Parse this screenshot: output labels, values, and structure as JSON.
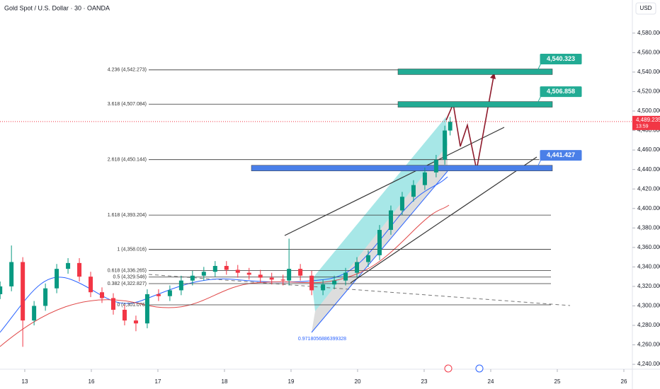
{
  "chart_data": {
    "type": "candlestick",
    "title": "Gold Spot / U.S. Dollar · 30 · OANDA",
    "currency": "USD",
    "up_color": "#089981",
    "down_color": "#f23645",
    "xlim": [
      -0.372,
      9.128
    ],
    "ylim": [
      4235,
      4614
    ],
    "xticks": [
      {
        "value": 0,
        "label": "13"
      },
      {
        "value": 1,
        "label": "16"
      },
      {
        "value": 2,
        "label": "17"
      },
      {
        "value": 3,
        "label": "18"
      },
      {
        "value": 4,
        "label": "19"
      },
      {
        "value": 5,
        "label": "20"
      },
      {
        "value": 6,
        "label": "23"
      },
      {
        "value": 7,
        "label": "24"
      },
      {
        "value": 8,
        "label": "25"
      },
      {
        "value": 9,
        "label": "26"
      }
    ],
    "yticks": [
      {
        "value": 4240,
        "label": "4,240.000"
      },
      {
        "value": 4260,
        "label": "4,260.000"
      },
      {
        "value": 4280,
        "label": "4,280.000"
      },
      {
        "value": 4300,
        "label": "4,300.000"
      },
      {
        "value": 4320,
        "label": "4,320.000"
      },
      {
        "value": 4340,
        "label": "4,340.000"
      },
      {
        "value": 4360,
        "label": "4,360.000"
      },
      {
        "value": 4380,
        "label": "4,380.000"
      },
      {
        "value": 4400,
        "label": "4,400.000"
      },
      {
        "value": 4420,
        "label": "4,420.000"
      },
      {
        "value": 4440,
        "label": "4,440.000"
      },
      {
        "value": 4460,
        "label": "4,460.000"
      },
      {
        "value": 4480,
        "label": "4,480.000"
      },
      {
        "value": 4500,
        "label": "4,500.000"
      },
      {
        "value": 4520,
        "label": "4,520.000"
      },
      {
        "value": 4540,
        "label": "4,540.000"
      },
      {
        "value": 4560,
        "label": "4,560.000"
      },
      {
        "value": 4580,
        "label": "4,580.000"
      }
    ],
    "x": [
      -0.37,
      -0.2,
      -0.03,
      0.14,
      0.31,
      0.48,
      0.65,
      0.82,
      0.99,
      1.16,
      1.33,
      1.5,
      1.67,
      1.84,
      2.01,
      2.18,
      2.35,
      2.52,
      2.69,
      2.86,
      3.03,
      3.2,
      3.37,
      3.54,
      3.71,
      3.88,
      3.97,
      4.14,
      4.31,
      4.48,
      4.65,
      4.82,
      4.99,
      5.16,
      5.33,
      5.5,
      5.67,
      5.84,
      6.01,
      6.18,
      6.31,
      6.39
    ],
    "open": [
      4312,
      4320,
      4345,
      4285,
      4300,
      4318,
      4338,
      4344,
      4330,
      4314,
      4308,
      4296,
      4285,
      4282,
      4312,
      4310,
      4316,
      4326,
      4331,
      4335,
      4341,
      4337,
      4334,
      4332,
      4329,
      4327,
      4326,
      4338,
      4331,
      4316,
      4322,
      4326,
      4334,
      4345,
      4352,
      4378,
      4398,
      4412,
      4424,
      4437,
      4450,
      4480
    ],
    "high": [
      4325,
      4362,
      4350,
      4305,
      4323,
      4343,
      4349,
      4349,
      4335,
      4319,
      4313,
      4301,
      4290,
      4317,
      4317,
      4321,
      4331,
      4336,
      4340,
      4346,
      4346,
      4342,
      4339,
      4337,
      4334,
      4332,
      4369,
      4343,
      4336,
      4327,
      4331,
      4339,
      4350,
      4357,
      4383,
      4403,
      4417,
      4429,
      4442,
      4455,
      4485,
      4494
    ],
    "low": [
      4307,
      4315,
      4258,
      4280,
      4295,
      4313,
      4333,
      4325,
      4309,
      4303,
      4291,
      4280,
      4274,
      4277,
      4305,
      4305,
      4311,
      4321,
      4326,
      4330,
      4332,
      4329,
      4327,
      4324,
      4322,
      4321,
      4321,
      4326,
      4311,
      4311,
      4317,
      4321,
      4329,
      4340,
      4347,
      4373,
      4393,
      4407,
      4419,
      4432,
      4445,
      4475
    ],
    "close": [
      4320,
      4345,
      4285,
      4300,
      4318,
      4338,
      4344,
      4330,
      4314,
      4308,
      4296,
      4285,
      4282,
      4312,
      4310,
      4316,
      4326,
      4331,
      4335,
      4341,
      4337,
      4334,
      4332,
      4329,
      4327,
      4326,
      4338,
      4331,
      4316,
      4322,
      4326,
      4334,
      4345,
      4352,
      4378,
      4398,
      4412,
      4424,
      4437,
      4450,
      4480,
      4489
    ],
    "fib_levels": [
      {
        "value": 4542.273,
        "label": "4.236 (4,542.273)"
      },
      {
        "value": 4507.084,
        "label": "3.618 (4,507.084)"
      },
      {
        "value": 4450.144,
        "label": "2.618 (4,450.144)"
      },
      {
        "value": 4393.204,
        "label": "1.618 (4,393.204)"
      },
      {
        "value": 4358.016,
        "label": "1 (4,358.016)"
      },
      {
        "value": 4336.265,
        "label": "0.618 (4,336.265)"
      },
      {
        "value": 4329.546,
        "label": "0.5 (4,329.546)"
      },
      {
        "value": 4322.827,
        "label": "0.382 (4,322.827)"
      },
      {
        "value": 4301.076,
        "label": "0 (4,301.076)"
      }
    ],
    "zones": [
      {
        "value": 4540.323,
        "label": "4,540.323",
        "color": "#22ab94"
      },
      {
        "value": 4506.858,
        "label": "4,506.858",
        "color": "#22ab94"
      },
      {
        "value": 4441.427,
        "label": "4,441.427",
        "color": "#4a7fe8"
      }
    ],
    "last_price": {
      "value": 4489.235,
      "label": "4,489.235"
    },
    "countdown": "13:59",
    "annotation": "0.9718056886399328"
  }
}
